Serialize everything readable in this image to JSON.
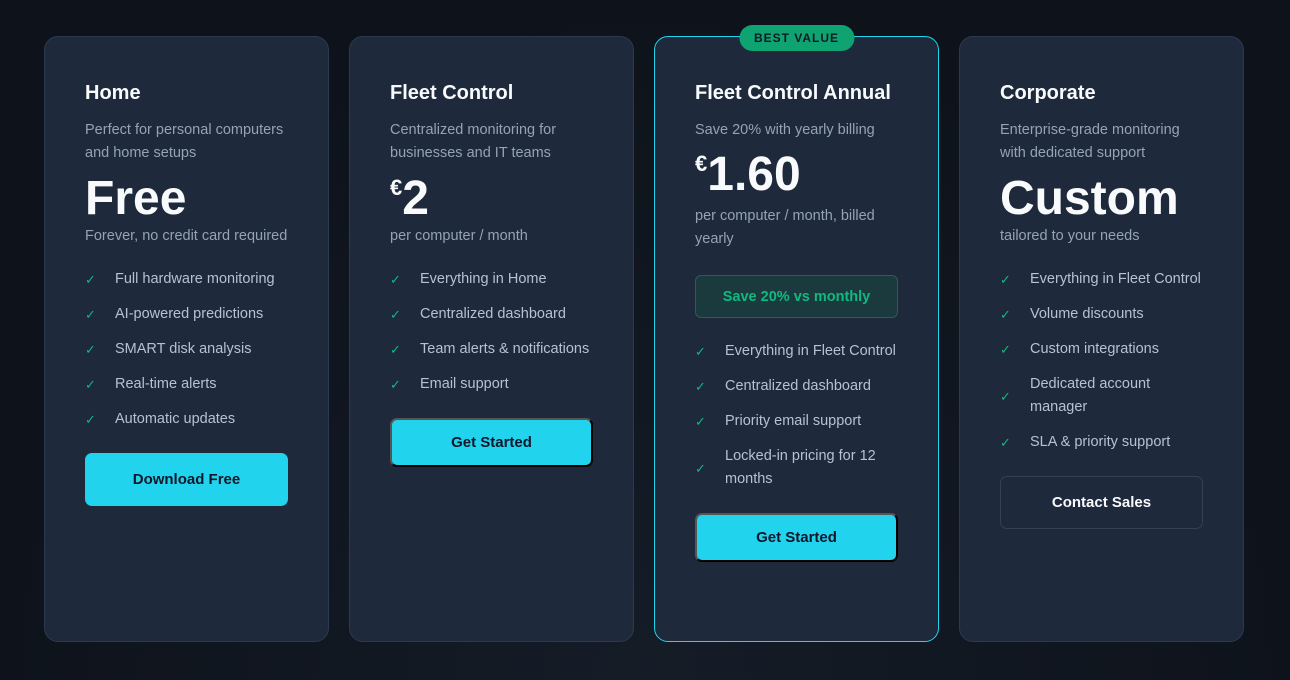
{
  "plans": [
    {
      "name": "Home",
      "description": "Perfect for personal computers and home setups",
      "currency": "",
      "price": "Free",
      "price_note": "Forever, no credit card required",
      "features": [
        "Full hardware monitoring",
        "AI-powered predictions",
        "SMART disk analysis",
        "Real-time alerts",
        "Automatic updates"
      ],
      "cta": "Download Free"
    },
    {
      "name": "Fleet Control",
      "description": "Centralized monitoring for businesses and IT teams",
      "currency": "€",
      "price": "2",
      "price_note": "per computer / month",
      "features": [
        "Everything in Home",
        "Centralized dashboard",
        "Team alerts & notifications",
        "Email support"
      ],
      "cta": "Get Started"
    },
    {
      "name": "Fleet Control Annual",
      "badge": "BEST VALUE",
      "description": "Save 20% with yearly billing",
      "currency": "€",
      "price": "1.60",
      "price_note": "per computer / month, billed yearly",
      "savings": "Save 20% vs monthly",
      "features": [
        "Everything in Fleet Control",
        "Centralized dashboard",
        "Priority email support",
        "Locked-in pricing for 12 months"
      ],
      "cta": "Get Started"
    },
    {
      "name": "Corporate",
      "description": "Enterprise-grade monitoring with dedicated support",
      "currency": "",
      "price": "Custom",
      "price_note": "tailored to your needs",
      "features": [
        "Everything in Fleet Control",
        "Volume discounts",
        "Custom integrations",
        "Dedicated account manager",
        "SLA & priority support"
      ],
      "cta": "Contact Sales"
    }
  ],
  "colors": {
    "accent": "#22d3ee",
    "success": "#10b981",
    "card": "#1e293b"
  },
  "icons": {
    "feature": "check-icon"
  }
}
